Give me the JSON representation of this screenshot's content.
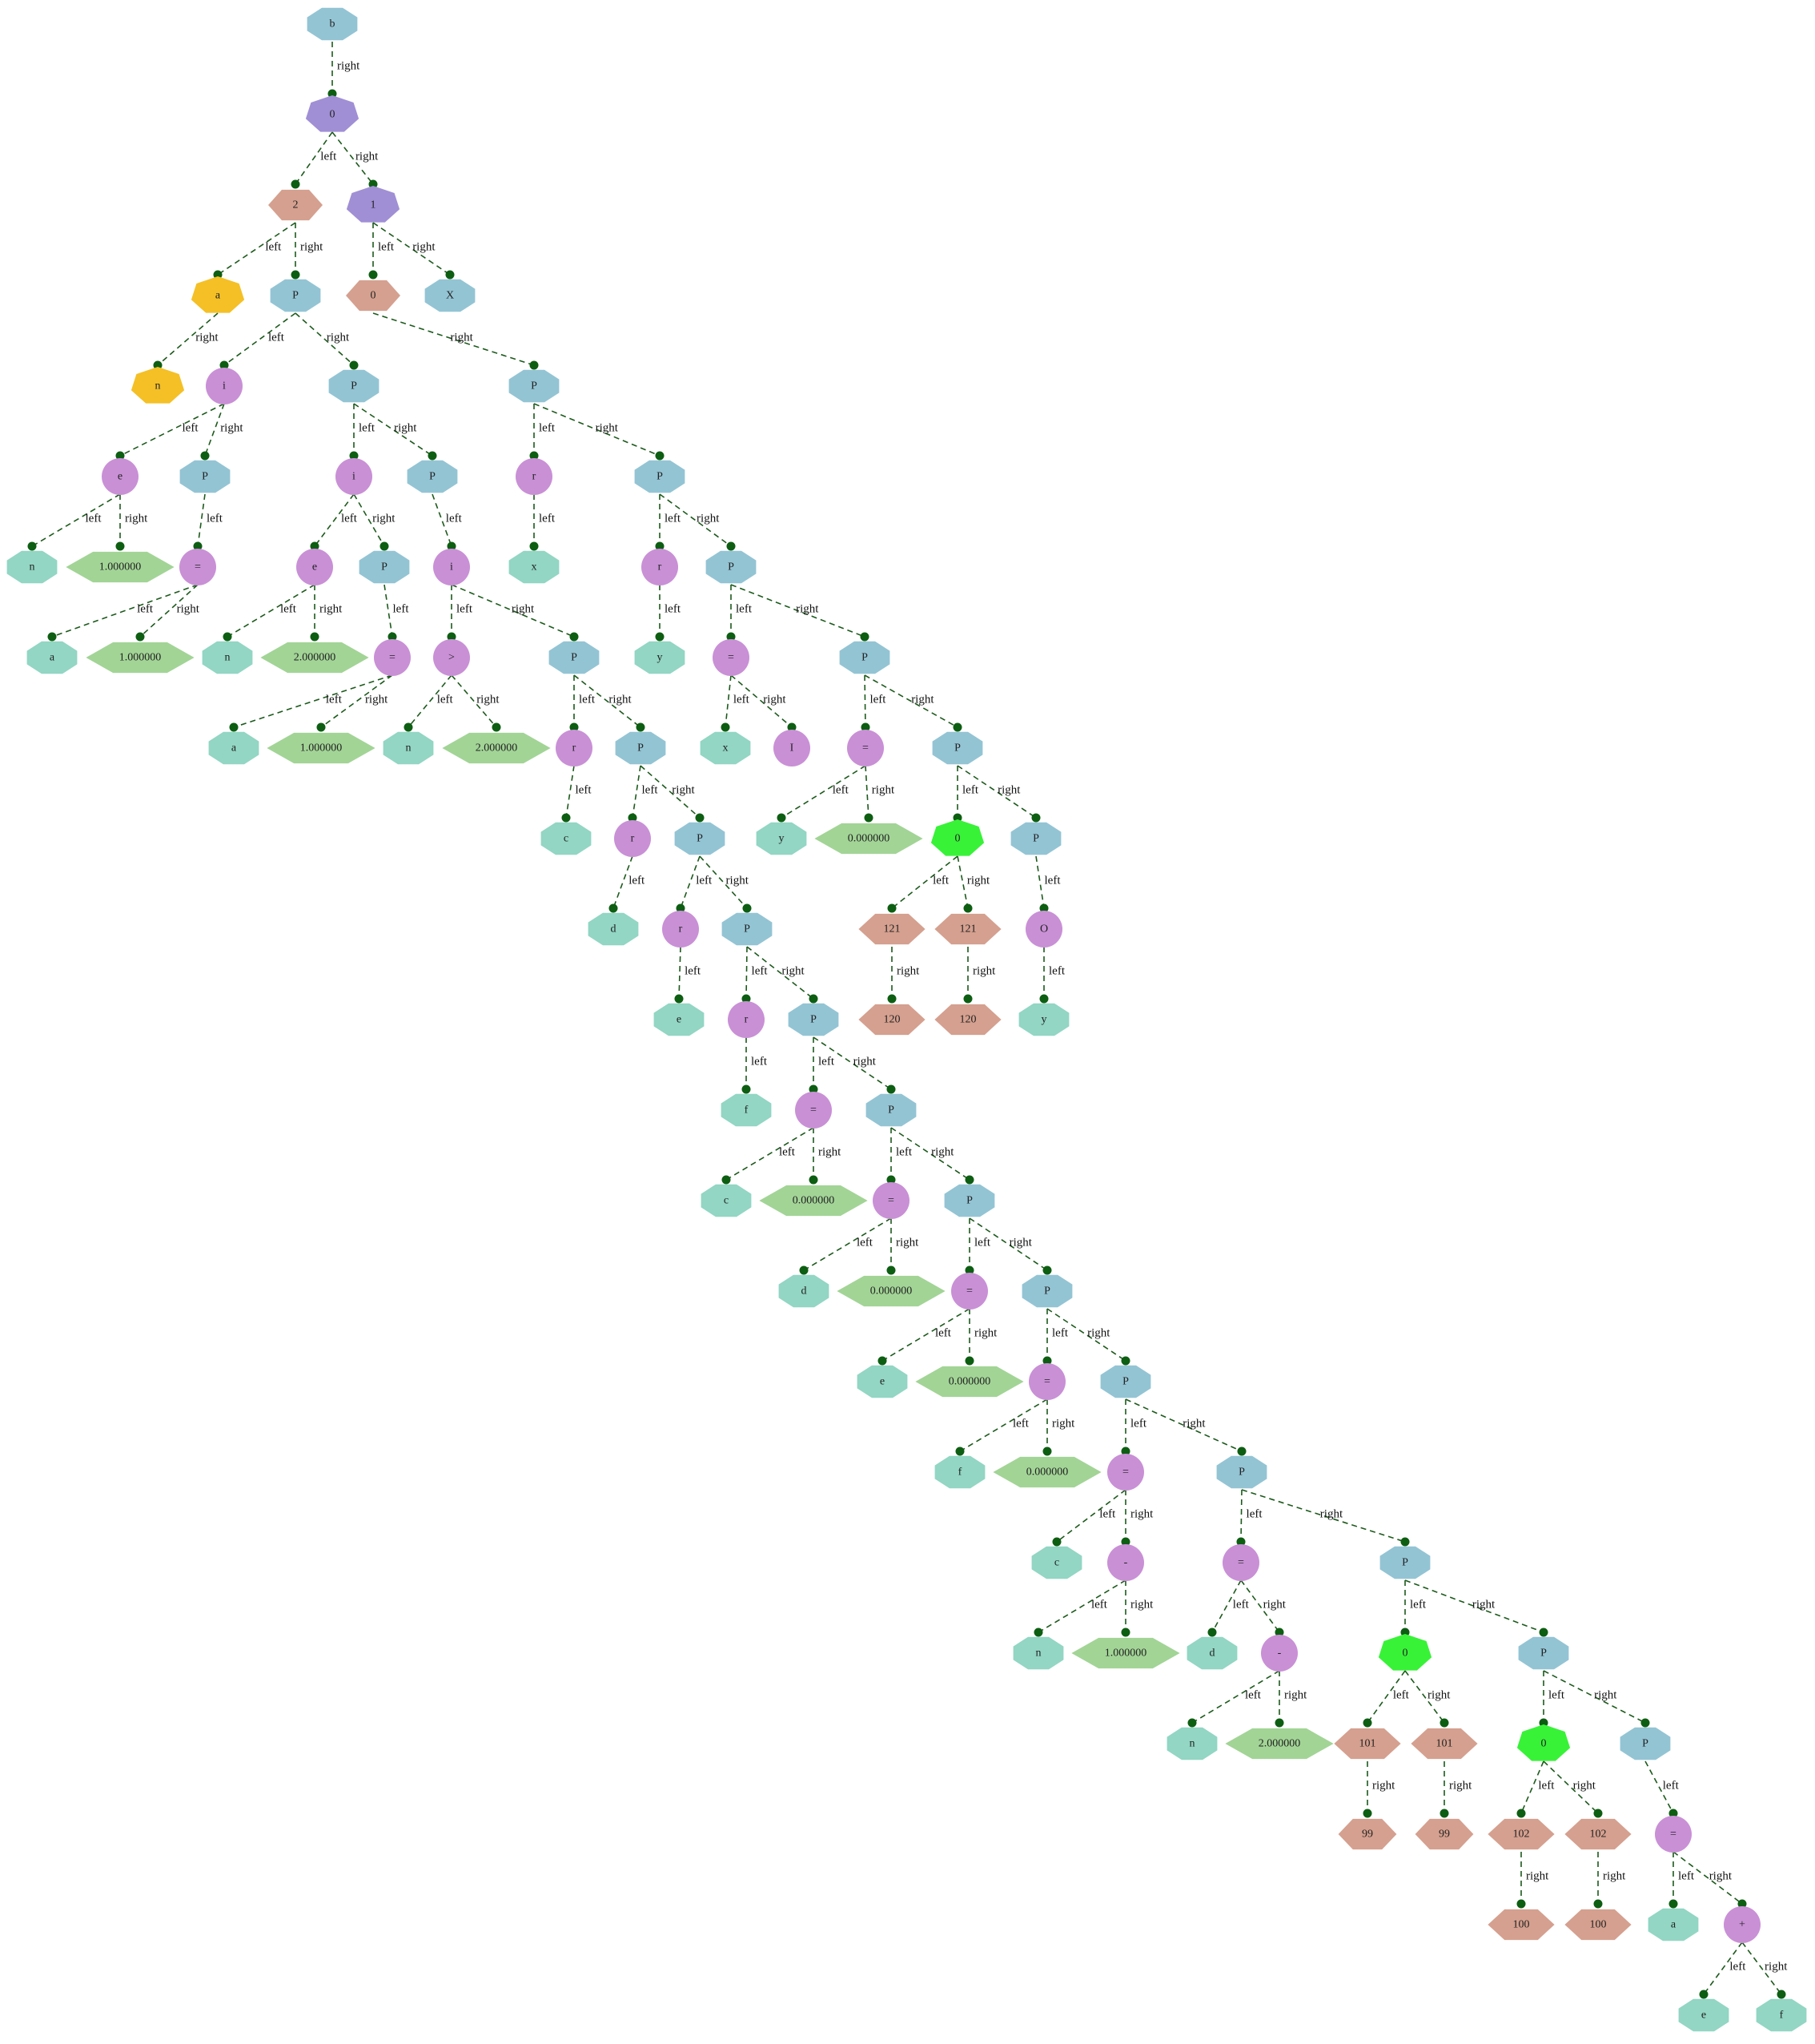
{
  "colors": {
    "block": "#93c4d4",
    "op": "#c990d6",
    "id": "#92d6c3",
    "num": "#a2d496",
    "type": "#d5a08f",
    "stmt": "#a08fd5",
    "ptr": "#f4c026",
    "cond": "#38f238",
    "edge": "#1c5a1c",
    "dot": "#0d5e12"
  },
  "nodes": [
    {
      "id": "n1",
      "label": "b",
      "shape": "oct",
      "color": "block"
    },
    {
      "id": "n2",
      "label": "0",
      "shape": "hept",
      "color": "stmt"
    },
    {
      "id": "n3",
      "label": "2",
      "shape": "hex",
      "color": "type"
    },
    {
      "id": "n4",
      "label": "1",
      "shape": "hept",
      "color": "stmt"
    },
    {
      "id": "n5",
      "label": "a",
      "shape": "hept",
      "color": "ptr"
    },
    {
      "id": "n6",
      "label": "P",
      "shape": "oct",
      "color": "block"
    },
    {
      "id": "n7",
      "label": "0",
      "shape": "hex",
      "color": "type"
    },
    {
      "id": "n8",
      "label": "X",
      "shape": "oct",
      "color": "block"
    },
    {
      "id": "n9",
      "label": "n",
      "shape": "hept",
      "color": "ptr"
    },
    {
      "id": "n10",
      "label": "i",
      "shape": "circle",
      "color": "op"
    },
    {
      "id": "n11",
      "label": "P",
      "shape": "oct",
      "color": "block"
    },
    {
      "id": "n12",
      "label": "P",
      "shape": "oct",
      "color": "block"
    },
    {
      "id": "n13",
      "label": "e",
      "shape": "circle",
      "color": "op"
    },
    {
      "id": "n14",
      "label": "P",
      "shape": "oct",
      "color": "block"
    },
    {
      "id": "n15",
      "label": "i",
      "shape": "circle",
      "color": "op"
    },
    {
      "id": "n16",
      "label": "P",
      "shape": "oct",
      "color": "block"
    },
    {
      "id": "n17",
      "label": "r",
      "shape": "circle",
      "color": "op"
    },
    {
      "id": "n18",
      "label": "P",
      "shape": "oct",
      "color": "block"
    },
    {
      "id": "n19",
      "label": "n",
      "shape": "oct",
      "color": "id"
    },
    {
      "id": "n20",
      "label": "1.000000",
      "shape": "hex",
      "color": "num"
    },
    {
      "id": "n21",
      "label": "=",
      "shape": "circle",
      "color": "op"
    },
    {
      "id": "n22",
      "label": "e",
      "shape": "circle",
      "color": "op"
    },
    {
      "id": "n23",
      "label": "P",
      "shape": "oct",
      "color": "block"
    },
    {
      "id": "n24",
      "label": "i",
      "shape": "circle",
      "color": "op"
    },
    {
      "id": "n25",
      "label": "x",
      "shape": "oct",
      "color": "id"
    },
    {
      "id": "n26",
      "label": "r",
      "shape": "circle",
      "color": "op"
    },
    {
      "id": "n27",
      "label": "P",
      "shape": "oct",
      "color": "block"
    },
    {
      "id": "n28",
      "label": "a",
      "shape": "oct",
      "color": "id"
    },
    {
      "id": "n29",
      "label": "1.000000",
      "shape": "hex",
      "color": "num"
    },
    {
      "id": "n30",
      "label": "n",
      "shape": "oct",
      "color": "id"
    },
    {
      "id": "n31",
      "label": "2.000000",
      "shape": "hex",
      "color": "num"
    },
    {
      "id": "n32",
      "label": "=",
      "shape": "circle",
      "color": "op"
    },
    {
      "id": "n33",
      "label": ">",
      "shape": "circle",
      "color": "op"
    },
    {
      "id": "n34",
      "label": "P",
      "shape": "oct",
      "color": "block"
    },
    {
      "id": "n35",
      "label": "y",
      "shape": "oct",
      "color": "id"
    },
    {
      "id": "n36",
      "label": "=",
      "shape": "circle",
      "color": "op"
    },
    {
      "id": "n37",
      "label": "P",
      "shape": "oct",
      "color": "block"
    },
    {
      "id": "n38",
      "label": "a",
      "shape": "oct",
      "color": "id"
    },
    {
      "id": "n39",
      "label": "1.000000",
      "shape": "hex",
      "color": "num"
    },
    {
      "id": "n40",
      "label": "n",
      "shape": "oct",
      "color": "id"
    },
    {
      "id": "n41",
      "label": "2.000000",
      "shape": "hex",
      "color": "num"
    },
    {
      "id": "n42",
      "label": "r",
      "shape": "circle",
      "color": "op"
    },
    {
      "id": "n43",
      "label": "P",
      "shape": "oct",
      "color": "block"
    },
    {
      "id": "n44",
      "label": "x",
      "shape": "oct",
      "color": "id"
    },
    {
      "id": "n45",
      "label": "I",
      "shape": "circle",
      "color": "op"
    },
    {
      "id": "n46",
      "label": "=",
      "shape": "circle",
      "color": "op"
    },
    {
      "id": "n47",
      "label": "P",
      "shape": "oct",
      "color": "block"
    },
    {
      "id": "n48",
      "label": "c",
      "shape": "oct",
      "color": "id"
    },
    {
      "id": "n49",
      "label": "r",
      "shape": "circle",
      "color": "op"
    },
    {
      "id": "n50",
      "label": "P",
      "shape": "oct",
      "color": "block"
    },
    {
      "id": "n51",
      "label": "y",
      "shape": "oct",
      "color": "id"
    },
    {
      "id": "n52",
      "label": "0.000000",
      "shape": "hex",
      "color": "num"
    },
    {
      "id": "n53",
      "label": "0",
      "shape": "hept",
      "color": "cond"
    },
    {
      "id": "n54",
      "label": "P",
      "shape": "oct",
      "color": "block"
    },
    {
      "id": "n55",
      "label": "d",
      "shape": "oct",
      "color": "id"
    },
    {
      "id": "n56",
      "label": "r",
      "shape": "circle",
      "color": "op"
    },
    {
      "id": "n57",
      "label": "P",
      "shape": "oct",
      "color": "block"
    },
    {
      "id": "n58",
      "label": "121",
      "shape": "hex",
      "color": "type"
    },
    {
      "id": "n59",
      "label": "121",
      "shape": "hex",
      "color": "type"
    },
    {
      "id": "n60",
      "label": "O",
      "shape": "circle",
      "color": "op"
    },
    {
      "id": "n61",
      "label": "e",
      "shape": "oct",
      "color": "id"
    },
    {
      "id": "n62",
      "label": "r",
      "shape": "circle",
      "color": "op"
    },
    {
      "id": "n63",
      "label": "P",
      "shape": "oct",
      "color": "block"
    },
    {
      "id": "n64",
      "label": "120",
      "shape": "hex",
      "color": "type"
    },
    {
      "id": "n65",
      "label": "120",
      "shape": "hex",
      "color": "type"
    },
    {
      "id": "n66",
      "label": "y",
      "shape": "oct",
      "color": "id"
    },
    {
      "id": "n67",
      "label": "f",
      "shape": "oct",
      "color": "id"
    },
    {
      "id": "n68",
      "label": "=",
      "shape": "circle",
      "color": "op"
    },
    {
      "id": "n69",
      "label": "P",
      "shape": "oct",
      "color": "block"
    },
    {
      "id": "n70",
      "label": "c",
      "shape": "oct",
      "color": "id"
    },
    {
      "id": "n71",
      "label": "0.000000",
      "shape": "hex",
      "color": "num"
    },
    {
      "id": "n72",
      "label": "=",
      "shape": "circle",
      "color": "op"
    },
    {
      "id": "n73",
      "label": "P",
      "shape": "oct",
      "color": "block"
    },
    {
      "id": "n74",
      "label": "d",
      "shape": "oct",
      "color": "id"
    },
    {
      "id": "n75",
      "label": "0.000000",
      "shape": "hex",
      "color": "num"
    },
    {
      "id": "n76",
      "label": "=",
      "shape": "circle",
      "color": "op"
    },
    {
      "id": "n77",
      "label": "P",
      "shape": "oct",
      "color": "block"
    },
    {
      "id": "n78",
      "label": "e",
      "shape": "oct",
      "color": "id"
    },
    {
      "id": "n79",
      "label": "0.000000",
      "shape": "hex",
      "color": "num"
    },
    {
      "id": "n80",
      "label": "=",
      "shape": "circle",
      "color": "op"
    },
    {
      "id": "n81",
      "label": "P",
      "shape": "oct",
      "color": "block"
    },
    {
      "id": "n82",
      "label": "f",
      "shape": "oct",
      "color": "id"
    },
    {
      "id": "n83",
      "label": "0.000000",
      "shape": "hex",
      "color": "num"
    },
    {
      "id": "n84",
      "label": "=",
      "shape": "circle",
      "color": "op"
    },
    {
      "id": "n85",
      "label": "P",
      "shape": "oct",
      "color": "block"
    },
    {
      "id": "n86",
      "label": "c",
      "shape": "oct",
      "color": "id"
    },
    {
      "id": "n87",
      "label": "-",
      "shape": "circle",
      "color": "op"
    },
    {
      "id": "n88",
      "label": "=",
      "shape": "circle",
      "color": "op"
    },
    {
      "id": "n89",
      "label": "P",
      "shape": "oct",
      "color": "block"
    },
    {
      "id": "n90",
      "label": "n",
      "shape": "oct",
      "color": "id"
    },
    {
      "id": "n91",
      "label": "1.000000",
      "shape": "hex",
      "color": "num"
    },
    {
      "id": "n92",
      "label": "d",
      "shape": "oct",
      "color": "id"
    },
    {
      "id": "n93",
      "label": "-",
      "shape": "circle",
      "color": "op"
    },
    {
      "id": "n94",
      "label": "0",
      "shape": "hept",
      "color": "cond"
    },
    {
      "id": "n95",
      "label": "P",
      "shape": "oct",
      "color": "block"
    },
    {
      "id": "n96",
      "label": "n",
      "shape": "oct",
      "color": "id"
    },
    {
      "id": "n97",
      "label": "2.000000",
      "shape": "hex",
      "color": "num"
    },
    {
      "id": "n98",
      "label": "101",
      "shape": "hex",
      "color": "type"
    },
    {
      "id": "n99",
      "label": "101",
      "shape": "hex",
      "color": "type"
    },
    {
      "id": "n100",
      "label": "0",
      "shape": "hept",
      "color": "cond"
    },
    {
      "id": "n101",
      "label": "P",
      "shape": "oct",
      "color": "block"
    },
    {
      "id": "n102",
      "label": "99",
      "shape": "hex",
      "color": "type"
    },
    {
      "id": "n103",
      "label": "99",
      "shape": "hex",
      "color": "type"
    },
    {
      "id": "n104",
      "label": "102",
      "shape": "hex",
      "color": "type"
    },
    {
      "id": "n105",
      "label": "102",
      "shape": "hex",
      "color": "type"
    },
    {
      "id": "n106",
      "label": "=",
      "shape": "circle",
      "color": "op"
    },
    {
      "id": "n107",
      "label": "100",
      "shape": "hex",
      "color": "type"
    },
    {
      "id": "n108",
      "label": "100",
      "shape": "hex",
      "color": "type"
    },
    {
      "id": "n109",
      "label": "a",
      "shape": "oct",
      "color": "id"
    },
    {
      "id": "n110",
      "label": "+",
      "shape": "circle",
      "color": "op"
    },
    {
      "id": "n111",
      "label": "e",
      "shape": "oct",
      "color": "id"
    },
    {
      "id": "n112",
      "label": "f",
      "shape": "oct",
      "color": "id"
    }
  ],
  "edges": [
    {
      "from": "n1",
      "to": "n2",
      "label": "right"
    },
    {
      "from": "n2",
      "to": "n3",
      "label": "left"
    },
    {
      "from": "n2",
      "to": "n4",
      "label": "right"
    },
    {
      "from": "n3",
      "to": "n5",
      "label": "left"
    },
    {
      "from": "n3",
      "to": "n6",
      "label": "right"
    },
    {
      "from": "n4",
      "to": "n7",
      "label": "left"
    },
    {
      "from": "n4",
      "to": "n8",
      "label": "right"
    },
    {
      "from": "n5",
      "to": "n9",
      "label": "right"
    },
    {
      "from": "n6",
      "to": "n10",
      "label": "left"
    },
    {
      "from": "n6",
      "to": "n11",
      "label": "right"
    },
    {
      "from": "n7",
      "to": "n12",
      "label": "right"
    },
    {
      "from": "n10",
      "to": "n13",
      "label": "left"
    },
    {
      "from": "n10",
      "to": "n14",
      "label": "right"
    },
    {
      "from": "n11",
      "to": "n15",
      "label": "left"
    },
    {
      "from": "n11",
      "to": "n16",
      "label": "right"
    },
    {
      "from": "n12",
      "to": "n17",
      "label": "left"
    },
    {
      "from": "n12",
      "to": "n18",
      "label": "right"
    },
    {
      "from": "n13",
      "to": "n19",
      "label": "left"
    },
    {
      "from": "n13",
      "to": "n20",
      "label": "right"
    },
    {
      "from": "n14",
      "to": "n21",
      "label": "left"
    },
    {
      "from": "n15",
      "to": "n22",
      "label": "left"
    },
    {
      "from": "n15",
      "to": "n23",
      "label": "right"
    },
    {
      "from": "n16",
      "to": "n24",
      "label": "left"
    },
    {
      "from": "n17",
      "to": "n25",
      "label": "left"
    },
    {
      "from": "n18",
      "to": "n26",
      "label": "left"
    },
    {
      "from": "n18",
      "to": "n27",
      "label": "right"
    },
    {
      "from": "n21",
      "to": "n28",
      "label": "left"
    },
    {
      "from": "n21",
      "to": "n29",
      "label": "right"
    },
    {
      "from": "n22",
      "to": "n30",
      "label": "left"
    },
    {
      "from": "n22",
      "to": "n31",
      "label": "right"
    },
    {
      "from": "n23",
      "to": "n32",
      "label": "left"
    },
    {
      "from": "n24",
      "to": "n33",
      "label": "left"
    },
    {
      "from": "n24",
      "to": "n34",
      "label": "right"
    },
    {
      "from": "n26",
      "to": "n35",
      "label": "left"
    },
    {
      "from": "n27",
      "to": "n36",
      "label": "left"
    },
    {
      "from": "n27",
      "to": "n37",
      "label": "right"
    },
    {
      "from": "n32",
      "to": "n38",
      "label": "left"
    },
    {
      "from": "n32",
      "to": "n39",
      "label": "right"
    },
    {
      "from": "n33",
      "to": "n40",
      "label": "left"
    },
    {
      "from": "n33",
      "to": "n41",
      "label": "right"
    },
    {
      "from": "n34",
      "to": "n42",
      "label": "left"
    },
    {
      "from": "n34",
      "to": "n43",
      "label": "right"
    },
    {
      "from": "n36",
      "to": "n44",
      "label": "left"
    },
    {
      "from": "n36",
      "to": "n45",
      "label": "right"
    },
    {
      "from": "n37",
      "to": "n46",
      "label": "left"
    },
    {
      "from": "n37",
      "to": "n47",
      "label": "right"
    },
    {
      "from": "n42",
      "to": "n48",
      "label": "left"
    },
    {
      "from": "n43",
      "to": "n49",
      "label": "left"
    },
    {
      "from": "n43",
      "to": "n50",
      "label": "right"
    },
    {
      "from": "n46",
      "to": "n51",
      "label": "left"
    },
    {
      "from": "n46",
      "to": "n52",
      "label": "right"
    },
    {
      "from": "n47",
      "to": "n53",
      "label": "left"
    },
    {
      "from": "n47",
      "to": "n54",
      "label": "right"
    },
    {
      "from": "n49",
      "to": "n55",
      "label": "left"
    },
    {
      "from": "n50",
      "to": "n56",
      "label": "left"
    },
    {
      "from": "n50",
      "to": "n57",
      "label": "right"
    },
    {
      "from": "n53",
      "to": "n58",
      "label": "left"
    },
    {
      "from": "n53",
      "to": "n59",
      "label": "right"
    },
    {
      "from": "n54",
      "to": "n60",
      "label": "left"
    },
    {
      "from": "n56",
      "to": "n61",
      "label": "left"
    },
    {
      "from": "n57",
      "to": "n62",
      "label": "left"
    },
    {
      "from": "n57",
      "to": "n63",
      "label": "right"
    },
    {
      "from": "n58",
      "to": "n64",
      "label": "right"
    },
    {
      "from": "n59",
      "to": "n65",
      "label": "right"
    },
    {
      "from": "n60",
      "to": "n66",
      "label": "left"
    },
    {
      "from": "n62",
      "to": "n67",
      "label": "left"
    },
    {
      "from": "n63",
      "to": "n68",
      "label": "left"
    },
    {
      "from": "n63",
      "to": "n69",
      "label": "right"
    },
    {
      "from": "n68",
      "to": "n70",
      "label": "left"
    },
    {
      "from": "n68",
      "to": "n71",
      "label": "right"
    },
    {
      "from": "n69",
      "to": "n72",
      "label": "left"
    },
    {
      "from": "n69",
      "to": "n73",
      "label": "right"
    },
    {
      "from": "n72",
      "to": "n74",
      "label": "left"
    },
    {
      "from": "n72",
      "to": "n75",
      "label": "right"
    },
    {
      "from": "n73",
      "to": "n76",
      "label": "left"
    },
    {
      "from": "n73",
      "to": "n77",
      "label": "right"
    },
    {
      "from": "n76",
      "to": "n78",
      "label": "left"
    },
    {
      "from": "n76",
      "to": "n79",
      "label": "right"
    },
    {
      "from": "n77",
      "to": "n80",
      "label": "left"
    },
    {
      "from": "n77",
      "to": "n81",
      "label": "right"
    },
    {
      "from": "n80",
      "to": "n82",
      "label": "left"
    },
    {
      "from": "n80",
      "to": "n83",
      "label": "right"
    },
    {
      "from": "n81",
      "to": "n84",
      "label": "left"
    },
    {
      "from": "n81",
      "to": "n85",
      "label": "right"
    },
    {
      "from": "n84",
      "to": "n86",
      "label": "left"
    },
    {
      "from": "n84",
      "to": "n87",
      "label": "right"
    },
    {
      "from": "n85",
      "to": "n88",
      "label": "left"
    },
    {
      "from": "n85",
      "to": "n89",
      "label": "right"
    },
    {
      "from": "n87",
      "to": "n90",
      "label": "left"
    },
    {
      "from": "n87",
      "to": "n91",
      "label": "right"
    },
    {
      "from": "n88",
      "to": "n92",
      "label": "left"
    },
    {
      "from": "n88",
      "to": "n93",
      "label": "right"
    },
    {
      "from": "n89",
      "to": "n94",
      "label": "left"
    },
    {
      "from": "n89",
      "to": "n95",
      "label": "right"
    },
    {
      "from": "n93",
      "to": "n96",
      "label": "left"
    },
    {
      "from": "n93",
      "to": "n97",
      "label": "right"
    },
    {
      "from": "n94",
      "to": "n98",
      "label": "left"
    },
    {
      "from": "n94",
      "to": "n99",
      "label": "right"
    },
    {
      "from": "n95",
      "to": "n100",
      "label": "left"
    },
    {
      "from": "n95",
      "to": "n101",
      "label": "right"
    },
    {
      "from": "n98",
      "to": "n102",
      "label": "right"
    },
    {
      "from": "n99",
      "to": "n103",
      "label": "right"
    },
    {
      "from": "n100",
      "to": "n104",
      "label": "left"
    },
    {
      "from": "n100",
      "to": "n105",
      "label": "right"
    },
    {
      "from": "n101",
      "to": "n106",
      "label": "left"
    },
    {
      "from": "n104",
      "to": "n107",
      "label": "right"
    },
    {
      "from": "n105",
      "to": "n108",
      "label": "right"
    },
    {
      "from": "n106",
      "to": "n109",
      "label": "left"
    },
    {
      "from": "n106",
      "to": "n110",
      "label": "right"
    },
    {
      "from": "n110",
      "to": "n111",
      "label": "left"
    },
    {
      "from": "n110",
      "to": "n112",
      "label": "right"
    }
  ]
}
